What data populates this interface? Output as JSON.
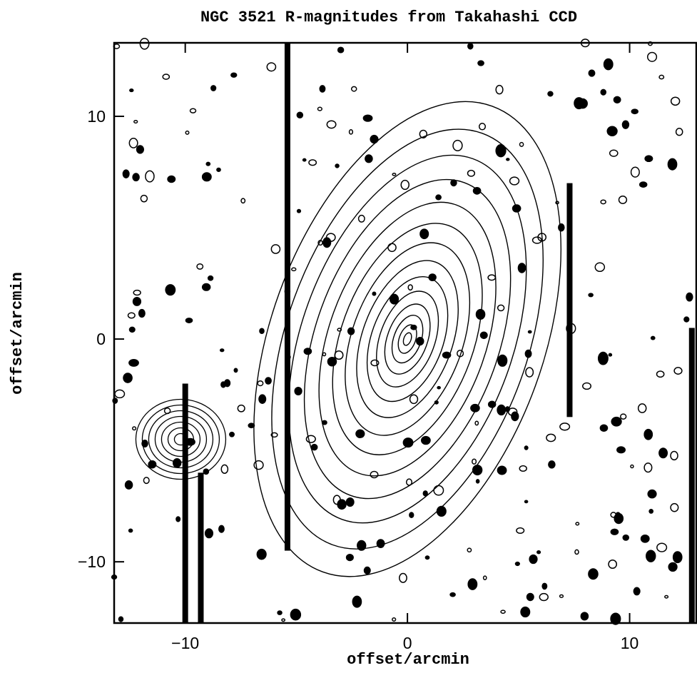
{
  "chart_data": {
    "type": "contour",
    "title": "NGC 3521 R-magnitudes from Takahashi CCD",
    "x_label": "offset/arcmin",
    "y_label": "offset/arcmin",
    "xlim": [
      -13.2,
      13.0
    ],
    "ylim": [
      -12.75,
      13.3
    ],
    "xticks": [
      {
        "value": -10,
        "label": "−10"
      },
      0,
      10
    ],
    "yticks": [
      {
        "value": -10,
        "label": "−10"
      },
      0,
      10
    ],
    "color": "#000000"
  }
}
